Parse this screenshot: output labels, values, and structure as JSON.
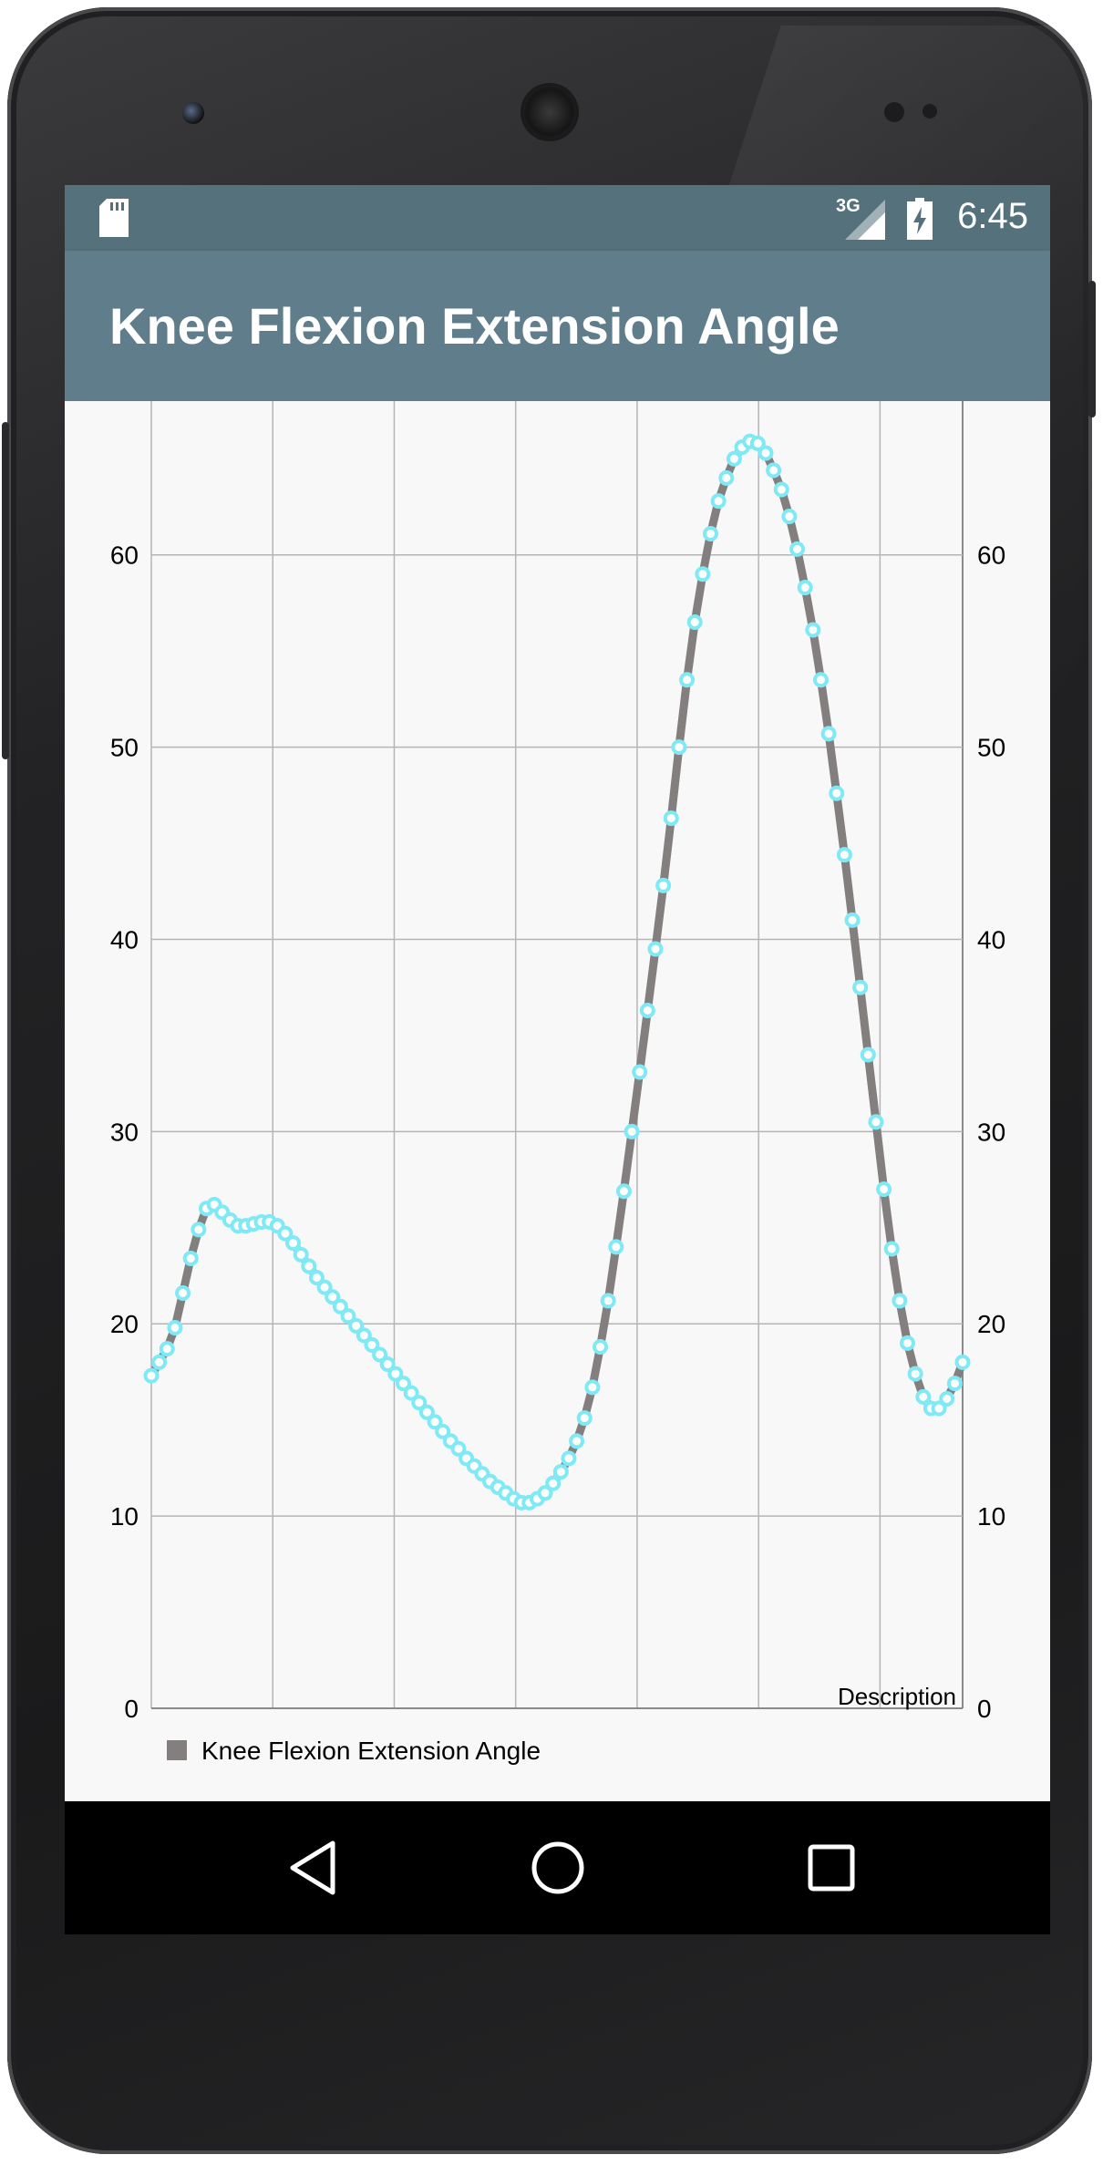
{
  "status_bar": {
    "network": "3G",
    "time": "6:45",
    "icons": [
      "sd-card-icon",
      "signal-icon",
      "battery-charging-icon"
    ]
  },
  "app_bar": {
    "title": "Knee Flexion Extension Angle"
  },
  "chart_data": {
    "type": "line",
    "title": "",
    "description": "Description",
    "ylim": [
      0,
      68
    ],
    "y_ticks": [
      "0",
      "10",
      "20",
      "30",
      "40",
      "50",
      "60"
    ],
    "grid": true,
    "legend": "bottom-left",
    "series": [
      {
        "name": "Knee Flexion Extension Angle",
        "line_color": "#837f7f",
        "marker_color": "#7fe9f6",
        "values": [
          17.3,
          18.0,
          18.7,
          19.8,
          21.6,
          23.4,
          24.9,
          26.0,
          26.2,
          25.8,
          25.4,
          25.1,
          25.1,
          25.2,
          25.3,
          25.3,
          25.1,
          24.7,
          24.2,
          23.6,
          23.0,
          22.4,
          21.9,
          21.4,
          20.9,
          20.4,
          19.9,
          19.4,
          18.9,
          18.4,
          17.9,
          17.4,
          16.9,
          16.4,
          15.9,
          15.4,
          14.9,
          14.4,
          13.9,
          13.5,
          13.0,
          12.6,
          12.2,
          11.8,
          11.5,
          11.2,
          10.9,
          10.7,
          10.7,
          10.9,
          11.2,
          11.7,
          12.3,
          13.0,
          13.9,
          15.1,
          16.7,
          18.8,
          21.2,
          24.0,
          26.9,
          30.0,
          33.1,
          36.3,
          39.5,
          42.8,
          46.3,
          50.0,
          53.5,
          56.5,
          59.0,
          61.1,
          62.8,
          64.0,
          65.0,
          65.6,
          65.9,
          65.8,
          65.3,
          64.4,
          63.4,
          62.0,
          60.3,
          58.3,
          56.1,
          53.5,
          50.7,
          47.6,
          44.4,
          41.0,
          37.5,
          34.0,
          30.5,
          27.0,
          23.9,
          21.2,
          19.0,
          17.4,
          16.2,
          15.6,
          15.6,
          16.1,
          16.9,
          18.0
        ]
      }
    ]
  },
  "nav_bar": {
    "buttons": [
      "back",
      "home",
      "recents"
    ]
  }
}
